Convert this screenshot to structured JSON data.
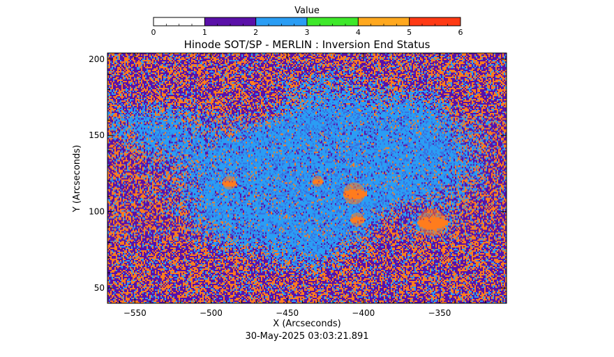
{
  "chart_data": {
    "type": "heatmap",
    "title": "Hinode SOT/SP - MERLIN : Inversion End Status",
    "xlabel": "X (Arcseconds)",
    "ylabel": "Y (Arcseconds)",
    "timestamp": "30-May-2025 03:03:21.891",
    "xlim": [
      -568,
      -306
    ],
    "ylim": [
      40,
      204
    ],
    "xticks": [
      -550,
      -500,
      -450,
      -400,
      -350
    ],
    "yticks": [
      50,
      100,
      150,
      200
    ],
    "colorbar": {
      "label": "Value",
      "range": [
        0,
        6
      ],
      "ticks": [
        0,
        1,
        2,
        3,
        4,
        5,
        6
      ],
      "bins": [
        {
          "from": 0,
          "to": 1,
          "color": "#ffffff"
        },
        {
          "from": 1,
          "to": 2,
          "color": "#5a10a8"
        },
        {
          "from": 2,
          "to": 3,
          "color": "#2a9df4"
        },
        {
          "from": 3,
          "to": 4,
          "color": "#3ee82a"
        },
        {
          "from": 4,
          "to": 5,
          "color": "#ffa81e"
        },
        {
          "from": 5,
          "to": 6,
          "color": "#ff3a14"
        }
      ]
    },
    "map_colors": {
      "background_mix": [
        "#5a10a8",
        "#ff7c1e",
        "#2a9df4"
      ],
      "quiet_region": "#3a70e0",
      "active_region": "#2a9df4",
      "spot_core": "#ff7c1e"
    },
    "features": [
      {
        "name": "pore",
        "x": -488,
        "y": 119,
        "radius": 5
      },
      {
        "name": "spot",
        "x": -406,
        "y": 112,
        "radius": 8
      },
      {
        "name": "spot",
        "x": -404,
        "y": 95,
        "radius": 5
      },
      {
        "name": "spot",
        "x": -355,
        "y": 93,
        "radius": 10
      },
      {
        "name": "spot",
        "x": -430,
        "y": 120,
        "radius": 4
      }
    ]
  }
}
